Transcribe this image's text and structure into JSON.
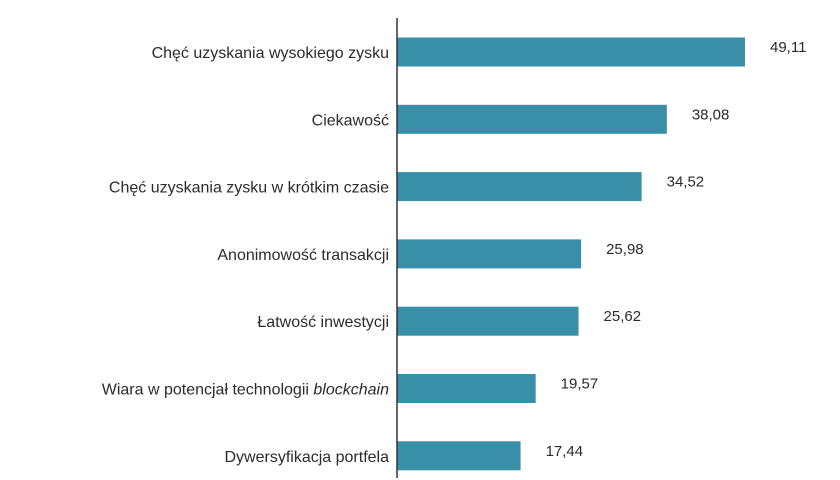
{
  "chart_data": {
    "type": "bar",
    "orientation": "horizontal",
    "categories": [
      "Chęć uzyskania wysokiego zysku",
      "Ciekawość",
      "Chęć uzyskania zysku w krótkim czasie",
      "Anonimowość transakcji",
      "Łatwość inwestycji",
      "Wiara w potencjał technologii blockchain",
      "Dywersyfikacja portfela"
    ],
    "category_parts": [
      [
        {
          "t": "Chęć uzyskania wysokiego zysku",
          "i": false
        }
      ],
      [
        {
          "t": "Ciekawość",
          "i": false
        }
      ],
      [
        {
          "t": "Chęć uzyskania zysku w krótkim czasie",
          "i": false
        }
      ],
      [
        {
          "t": "Anonimowość transakcji",
          "i": false
        }
      ],
      [
        {
          "t": "Łatwość inwestycji",
          "i": false
        }
      ],
      [
        {
          "t": "Wiara w potencjał technologii ",
          "i": false
        },
        {
          "t": "blockchain",
          "i": true
        }
      ],
      [
        {
          "t": "Dywersyfikacja portfela",
          "i": false
        }
      ]
    ],
    "values": [
      49.11,
      38.08,
      34.52,
      25.98,
      25.62,
      19.57,
      17.44
    ],
    "value_labels": [
      "49,11",
      "38,08",
      "34,52",
      "25,98",
      "25,62",
      "19,57",
      "17,44"
    ],
    "title": "",
    "xlabel": "",
    "ylabel": "",
    "xlim": [
      0,
      50
    ],
    "grid": false,
    "bar_color": "#3a8fa8",
    "axis_color": "#333333"
  }
}
